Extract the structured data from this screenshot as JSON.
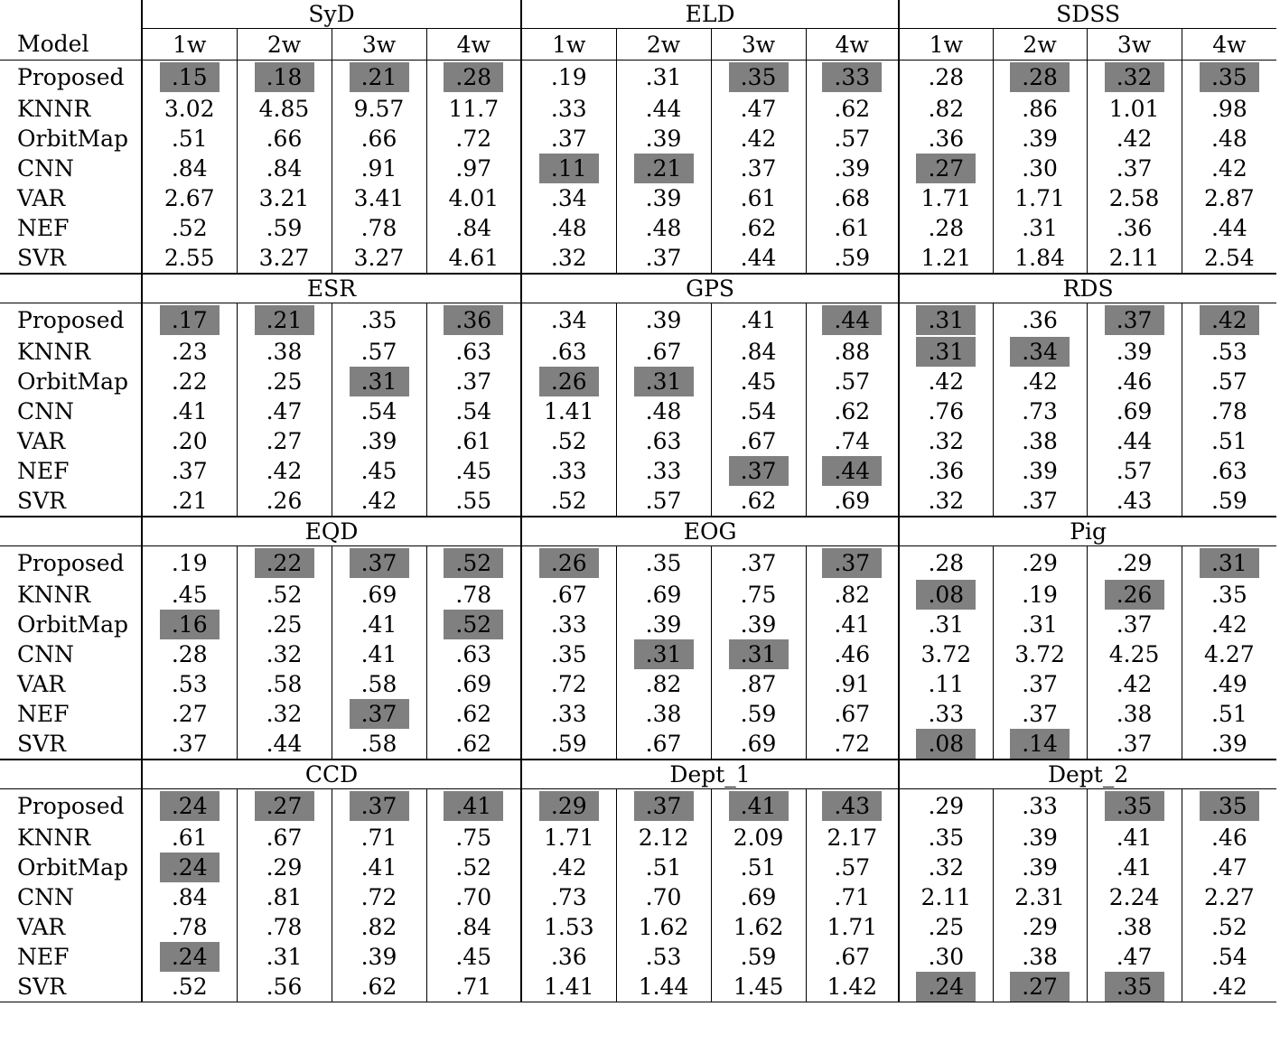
{
  "model_header": "Model",
  "week_labels": [
    "1w",
    "2w",
    "3w",
    "4w"
  ],
  "blocks": [
    {
      "datasets": [
        "SyD",
        "ELD",
        "SDSS"
      ],
      "rows": [
        {
          "model": "Proposed",
          "values": [
            ".15",
            ".18",
            ".21",
            ".28",
            ".19",
            ".31",
            ".35",
            ".33",
            ".28",
            ".28",
            ".32",
            ".35"
          ],
          "highlighted": [
            0,
            1,
            2,
            3,
            6,
            7,
            9,
            10,
            11
          ]
        },
        {
          "model": "KNNR",
          "values": [
            "3.02",
            "4.85",
            "9.57",
            "11.7",
            ".33",
            ".44",
            ".47",
            ".62",
            ".82",
            ".86",
            "1.01",
            ".98"
          ],
          "highlighted": []
        },
        {
          "model": "OrbitMap",
          "values": [
            ".51",
            ".66",
            ".66",
            ".72",
            ".37",
            ".39",
            ".42",
            ".57",
            ".36",
            ".39",
            ".42",
            ".48"
          ],
          "highlighted": []
        },
        {
          "model": "CNN",
          "values": [
            ".84",
            ".84",
            ".91",
            ".97",
            ".11",
            ".21",
            ".37",
            ".39",
            ".27",
            ".30",
            ".37",
            ".42"
          ],
          "highlighted": [
            4,
            5,
            8
          ]
        },
        {
          "model": "VAR",
          "values": [
            "2.67",
            "3.21",
            "3.41",
            "4.01",
            ".34",
            ".39",
            ".61",
            ".68",
            "1.71",
            "1.71",
            "2.58",
            "2.87"
          ],
          "highlighted": []
        },
        {
          "model": "NEF",
          "values": [
            ".52",
            ".59",
            ".78",
            ".84",
            ".48",
            ".48",
            ".62",
            ".61",
            ".28",
            ".31",
            ".36",
            ".44"
          ],
          "highlighted": []
        },
        {
          "model": "SVR",
          "values": [
            "2.55",
            "3.27",
            "3.27",
            "4.61",
            ".32",
            ".37",
            ".44",
            ".59",
            "1.21",
            "1.84",
            "2.11",
            "2.54"
          ],
          "highlighted": []
        }
      ]
    },
    {
      "datasets": [
        "ESR",
        "GPS",
        "RDS"
      ],
      "rows": [
        {
          "model": "Proposed",
          "values": [
            ".17",
            ".21",
            ".35",
            ".36",
            ".34",
            ".39",
            ".41",
            ".44",
            ".31",
            ".36",
            ".37",
            ".42"
          ],
          "highlighted": [
            0,
            1,
            3,
            7,
            8,
            10,
            11
          ]
        },
        {
          "model": "KNNR",
          "values": [
            ".23",
            ".38",
            ".57",
            ".63",
            ".63",
            ".67",
            ".84",
            ".88",
            ".31",
            ".34",
            ".39",
            ".53"
          ],
          "highlighted": [
            8,
            9
          ]
        },
        {
          "model": "OrbitMap",
          "values": [
            ".22",
            ".25",
            ".31",
            ".37",
            ".26",
            ".31",
            ".45",
            ".57",
            ".42",
            ".42",
            ".46",
            ".57"
          ],
          "highlighted": [
            2,
            4,
            5
          ]
        },
        {
          "model": "CNN",
          "values": [
            ".41",
            ".47",
            ".54",
            ".54",
            "1.41",
            ".48",
            ".54",
            ".62",
            ".76",
            ".73",
            ".69",
            ".78"
          ],
          "highlighted": []
        },
        {
          "model": "VAR",
          "values": [
            ".20",
            ".27",
            ".39",
            ".61",
            ".52",
            ".63",
            ".67",
            ".74",
            ".32",
            ".38",
            ".44",
            ".51"
          ],
          "highlighted": []
        },
        {
          "model": "NEF",
          "values": [
            ".37",
            ".42",
            ".45",
            ".45",
            ".33",
            ".33",
            ".37",
            ".44",
            ".36",
            ".39",
            ".57",
            ".63"
          ],
          "highlighted": [
            6,
            7
          ]
        },
        {
          "model": "SVR",
          "values": [
            ".21",
            ".26",
            ".42",
            ".55",
            ".52",
            ".57",
            ".62",
            ".69",
            ".32",
            ".37",
            ".43",
            ".59"
          ],
          "highlighted": []
        }
      ]
    },
    {
      "datasets": [
        "EQD",
        "EOG",
        "Pig"
      ],
      "rows": [
        {
          "model": "Proposed",
          "values": [
            ".19",
            ".22",
            ".37",
            ".52",
            ".26",
            ".35",
            ".37",
            ".37",
            ".28",
            ".29",
            ".29",
            ".31"
          ],
          "highlighted": [
            1,
            2,
            3,
            4,
            7,
            11
          ]
        },
        {
          "model": "KNNR",
          "values": [
            ".45",
            ".52",
            ".69",
            ".78",
            ".67",
            ".69",
            ".75",
            ".82",
            ".08",
            ".19",
            ".26",
            ".35"
          ],
          "highlighted": [
            8,
            10
          ]
        },
        {
          "model": "OrbitMap",
          "values": [
            ".16",
            ".25",
            ".41",
            ".52",
            ".33",
            ".39",
            ".39",
            ".41",
            ".31",
            ".31",
            ".37",
            ".42"
          ],
          "highlighted": [
            0,
            3
          ]
        },
        {
          "model": "CNN",
          "values": [
            ".28",
            ".32",
            ".41",
            ".63",
            ".35",
            ".31",
            ".31",
            ".46",
            "3.72",
            "3.72",
            "4.25",
            "4.27"
          ],
          "highlighted": [
            5,
            6
          ]
        },
        {
          "model": "VAR",
          "values": [
            ".53",
            ".58",
            ".58",
            ".69",
            ".72",
            ".82",
            ".87",
            ".91",
            ".11",
            ".37",
            ".42",
            ".49"
          ],
          "highlighted": []
        },
        {
          "model": "NEF",
          "values": [
            ".27",
            ".32",
            ".37",
            ".62",
            ".33",
            ".38",
            ".59",
            ".67",
            ".33",
            ".37",
            ".38",
            ".51"
          ],
          "highlighted": [
            2
          ]
        },
        {
          "model": "SVR",
          "values": [
            ".37",
            ".44",
            ".58",
            ".62",
            ".59",
            ".67",
            ".69",
            ".72",
            ".08",
            ".14",
            ".37",
            ".39"
          ],
          "highlighted": [
            8,
            9
          ]
        }
      ]
    },
    {
      "datasets": [
        "CCD",
        "Dept_1",
        "Dept_2"
      ],
      "rows": [
        {
          "model": "Proposed",
          "values": [
            ".24",
            ".27",
            ".37",
            ".41",
            ".29",
            ".37",
            ".41",
            ".43",
            ".29",
            ".33",
            ".35",
            ".35"
          ],
          "highlighted": [
            0,
            1,
            2,
            3,
            4,
            5,
            6,
            7,
            10,
            11
          ]
        },
        {
          "model": "KNNR",
          "values": [
            ".61",
            ".67",
            ".71",
            ".75",
            "1.71",
            "2.12",
            "2.09",
            "2.17",
            ".35",
            ".39",
            ".41",
            ".46"
          ],
          "highlighted": []
        },
        {
          "model": "OrbitMap",
          "values": [
            ".24",
            ".29",
            ".41",
            ".52",
            ".42",
            ".51",
            ".51",
            ".57",
            ".32",
            ".39",
            ".41",
            ".47"
          ],
          "highlighted": [
            0
          ]
        },
        {
          "model": "CNN",
          "values": [
            ".84",
            ".81",
            ".72",
            ".70",
            ".73",
            ".70",
            ".69",
            ".71",
            "2.11",
            "2.31",
            "2.24",
            "2.27"
          ],
          "highlighted": []
        },
        {
          "model": "VAR",
          "values": [
            ".78",
            ".78",
            ".82",
            ".84",
            "1.53",
            "1.62",
            "1.62",
            "1.71",
            ".25",
            ".29",
            ".38",
            ".52"
          ],
          "highlighted": []
        },
        {
          "model": "NEF",
          "values": [
            ".24",
            ".31",
            ".39",
            ".45",
            ".36",
            ".53",
            ".59",
            ".67",
            ".30",
            ".38",
            ".47",
            ".54"
          ],
          "highlighted": [
            0
          ]
        },
        {
          "model": "SVR",
          "values": [
            ".52",
            ".56",
            ".62",
            ".71",
            "1.41",
            "1.44",
            "1.45",
            "1.42",
            ".24",
            ".27",
            ".35",
            ".42"
          ],
          "highlighted": [
            8,
            9,
            10
          ]
        }
      ]
    }
  ],
  "colors": {
    "highlight": "#808080",
    "text": "#000000",
    "background": "#ffffff"
  }
}
